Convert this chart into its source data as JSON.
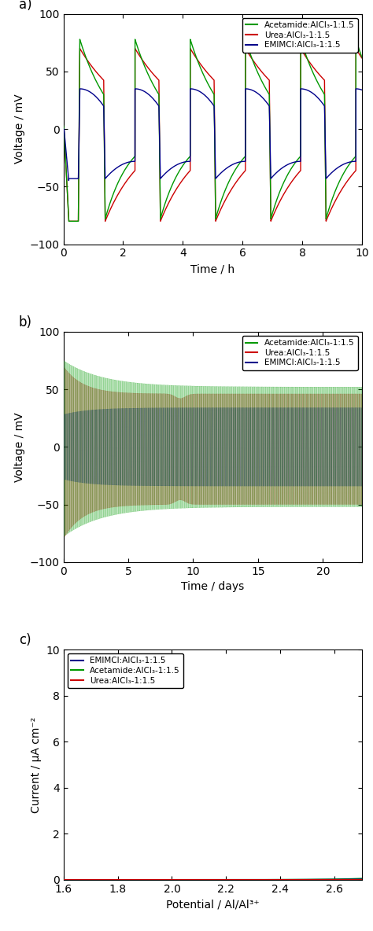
{
  "panel_a": {
    "title_label": "a)",
    "xlabel": "Time / h",
    "ylabel": "Voltage / mV",
    "xlim": [
      0,
      10
    ],
    "ylim": [
      -100,
      100
    ],
    "xticks": [
      0,
      2,
      4,
      6,
      8,
      10
    ],
    "yticks": [
      -100,
      -50,
      0,
      50,
      100
    ],
    "colors": {
      "green": "#009900",
      "red": "#cc0000",
      "blue": "#00008b"
    },
    "legend": [
      {
        "label": "Acetamide:AlCl₃-1:1.5",
        "color": "#009900"
      },
      {
        "label": "Urea:AlCl₃-1:1.5",
        "color": "#cc0000"
      },
      {
        "label": "EMIMCl:AlCl₃-1:1.5",
        "color": "#00008b"
      }
    ]
  },
  "panel_b": {
    "title_label": "b)",
    "xlabel": "Time / days",
    "ylabel": "Voltage / mV",
    "xlim": [
      0,
      23
    ],
    "ylim": [
      -100,
      100
    ],
    "xticks": [
      0,
      5,
      10,
      15,
      20
    ],
    "yticks": [
      -100,
      -50,
      0,
      50,
      100
    ],
    "colors": {
      "green": "#009900",
      "red": "#cc0000",
      "blue": "#00008b"
    },
    "legend": [
      {
        "label": "Acetamide:AlCl₃-1:1.5",
        "color": "#009900"
      },
      {
        "label": "Urea:AlCl₃-1:1.5",
        "color": "#cc0000"
      },
      {
        "label": "EMIMCl:AlCl₃-1:1.5",
        "color": "#00008b"
      }
    ]
  },
  "panel_c": {
    "title_label": "c)",
    "xlabel": "Potential / Al/Al³⁺",
    "ylabel": "Current / μA cm⁻²",
    "xlim": [
      1.6,
      2.7
    ],
    "ylim": [
      0,
      10
    ],
    "xticks": [
      1.6,
      1.8,
      2.0,
      2.2,
      2.4,
      2.6
    ],
    "yticks": [
      0,
      2,
      4,
      6,
      8,
      10
    ],
    "colors": {
      "green": "#009900",
      "red": "#cc0000",
      "blue": "#00008b"
    },
    "legend": [
      {
        "label": "EMIMCl:AlCl₃-1:1.5",
        "color": "#00008b"
      },
      {
        "label": "Acetamide:AlCl₃-1:1.5",
        "color": "#009900"
      },
      {
        "label": "Urea:AlCl₃-1:1.5",
        "color": "#cc0000"
      }
    ]
  }
}
